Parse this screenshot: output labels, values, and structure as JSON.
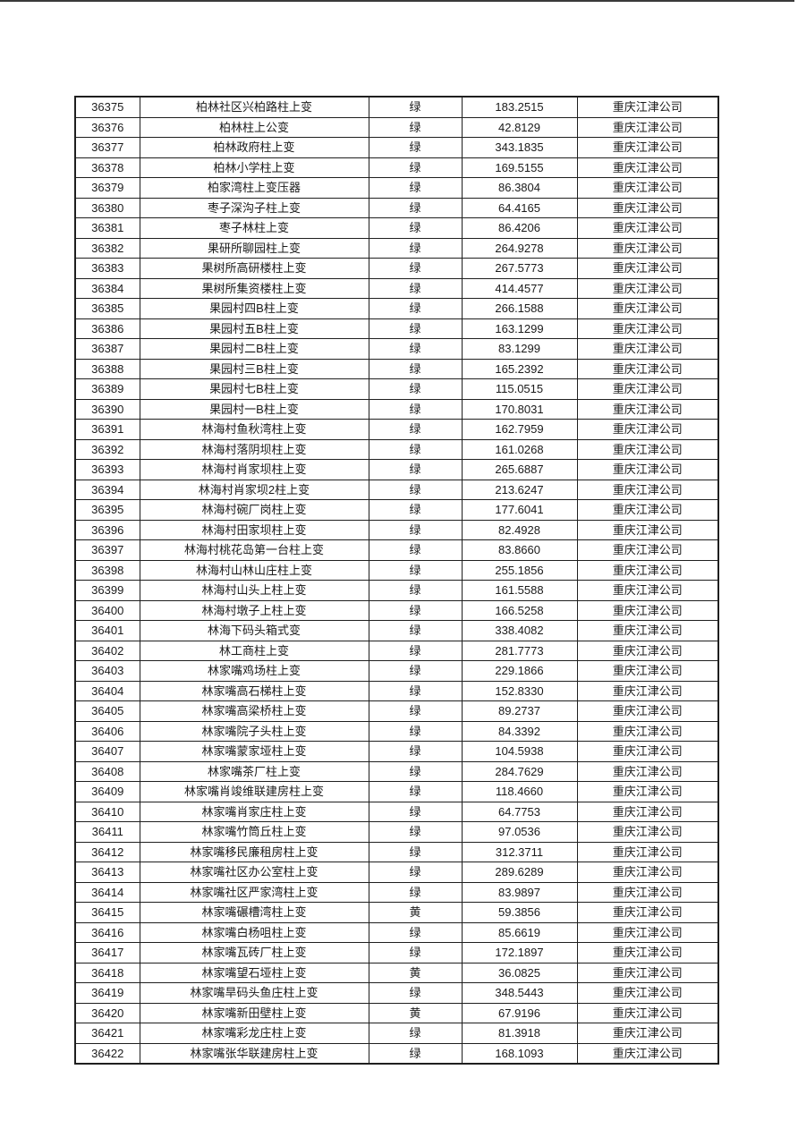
{
  "page": {
    "background_color": "#ffffff",
    "top_rule_color": "#3a3a3a"
  },
  "table": {
    "field_names": [
      "id",
      "name",
      "status",
      "value",
      "company"
    ],
    "rows": [
      [
        "36375",
        "柏林社区兴柏路柱上变",
        "绿",
        "183.2515",
        "重庆江津公司"
      ],
      [
        "36376",
        "柏林柱上公变",
        "绿",
        "42.8129",
        "重庆江津公司"
      ],
      [
        "36377",
        "柏林政府柱上变",
        "绿",
        "343.1835",
        "重庆江津公司"
      ],
      [
        "36378",
        "柏林小学柱上变",
        "绿",
        "169.5155",
        "重庆江津公司"
      ],
      [
        "36379",
        "柏家湾柱上变压器",
        "绿",
        "86.3804",
        "重庆江津公司"
      ],
      [
        "36380",
        "枣子深沟子柱上变",
        "绿",
        "64.4165",
        "重庆江津公司"
      ],
      [
        "36381",
        "枣子林柱上变",
        "绿",
        "86.4206",
        "重庆江津公司"
      ],
      [
        "36382",
        "果研所聊园柱上变",
        "绿",
        "264.9278",
        "重庆江津公司"
      ],
      [
        "36383",
        "果树所高研楼柱上变",
        "绿",
        "267.5773",
        "重庆江津公司"
      ],
      [
        "36384",
        "果树所集资楼柱上变",
        "绿",
        "414.4577",
        "重庆江津公司"
      ],
      [
        "36385",
        "果园村四B柱上变",
        "绿",
        "266.1588",
        "重庆江津公司"
      ],
      [
        "36386",
        "果园村五B柱上变",
        "绿",
        "163.1299",
        "重庆江津公司"
      ],
      [
        "36387",
        "果园村二B柱上变",
        "绿",
        "83.1299",
        "重庆江津公司"
      ],
      [
        "36388",
        "果园村三B柱上变",
        "绿",
        "165.2392",
        "重庆江津公司"
      ],
      [
        "36389",
        "果园村七B柱上变",
        "绿",
        "115.0515",
        "重庆江津公司"
      ],
      [
        "36390",
        "果园村一B柱上变",
        "绿",
        "170.8031",
        "重庆江津公司"
      ],
      [
        "36391",
        "林海村鱼秋湾柱上变",
        "绿",
        "162.7959",
        "重庆江津公司"
      ],
      [
        "36392",
        "林海村落阴坝柱上变",
        "绿",
        "161.0268",
        "重庆江津公司"
      ],
      [
        "36393",
        "林海村肖家坝柱上变",
        "绿",
        "265.6887",
        "重庆江津公司"
      ],
      [
        "36394",
        "林海村肖家坝2柱上变",
        "绿",
        "213.6247",
        "重庆江津公司"
      ],
      [
        "36395",
        "林海村碗厂岗柱上变",
        "绿",
        "177.6041",
        "重庆江津公司"
      ],
      [
        "36396",
        "林海村田家坝柱上变",
        "绿",
        "82.4928",
        "重庆江津公司"
      ],
      [
        "36397",
        "林海村桃花岛第一台柱上变",
        "绿",
        "83.8660",
        "重庆江津公司"
      ],
      [
        "36398",
        "林海村山林山庄柱上变",
        "绿",
        "255.1856",
        "重庆江津公司"
      ],
      [
        "36399",
        "林海村山头上柱上变",
        "绿",
        "161.5588",
        "重庆江津公司"
      ],
      [
        "36400",
        "林海村墩子上柱上变",
        "绿",
        "166.5258",
        "重庆江津公司"
      ],
      [
        "36401",
        "林海下码头箱式变",
        "绿",
        "338.4082",
        "重庆江津公司"
      ],
      [
        "36402",
        "林工商柱上变",
        "绿",
        "281.7773",
        "重庆江津公司"
      ],
      [
        "36403",
        "林家嘴鸡场柱上变",
        "绿",
        "229.1866",
        "重庆江津公司"
      ],
      [
        "36404",
        "林家嘴高石梯柱上变",
        "绿",
        "152.8330",
        "重庆江津公司"
      ],
      [
        "36405",
        "林家嘴高梁桥柱上变",
        "绿",
        "89.2737",
        "重庆江津公司"
      ],
      [
        "36406",
        "林家嘴院子头柱上变",
        "绿",
        "84.3392",
        "重庆江津公司"
      ],
      [
        "36407",
        "林家嘴蒙家垭柱上变",
        "绿",
        "104.5938",
        "重庆江津公司"
      ],
      [
        "36408",
        "林家嘴茶厂柱上变",
        "绿",
        "284.7629",
        "重庆江津公司"
      ],
      [
        "36409",
        "林家嘴肖竣维联建房柱上变",
        "绿",
        "118.4660",
        "重庆江津公司"
      ],
      [
        "36410",
        "林家嘴肖家庄柱上变",
        "绿",
        "64.7753",
        "重庆江津公司"
      ],
      [
        "36411",
        "林家嘴竹筒丘柱上变",
        "绿",
        "97.0536",
        "重庆江津公司"
      ],
      [
        "36412",
        "林家嘴移民廉租房柱上变",
        "绿",
        "312.3711",
        "重庆江津公司"
      ],
      [
        "36413",
        "林家嘴社区办公室柱上变",
        "绿",
        "289.6289",
        "重庆江津公司"
      ],
      [
        "36414",
        "林家嘴社区严家湾柱上变",
        "绿",
        "83.9897",
        "重庆江津公司"
      ],
      [
        "36415",
        "林家嘴碾槽湾柱上变",
        "黄",
        "59.3856",
        "重庆江津公司"
      ],
      [
        "36416",
        "林家嘴白杨咀柱上变",
        "绿",
        "85.6619",
        "重庆江津公司"
      ],
      [
        "36417",
        "林家嘴瓦砖厂柱上变",
        "绿",
        "172.1897",
        "重庆江津公司"
      ],
      [
        "36418",
        "林家嘴望石垭柱上变",
        "黄",
        "36.0825",
        "重庆江津公司"
      ],
      [
        "36419",
        "林家嘴旱码头鱼庄柱上变",
        "绿",
        "348.5443",
        "重庆江津公司"
      ],
      [
        "36420",
        "林家嘴新田壁柱上变",
        "黄",
        "67.9196",
        "重庆江津公司"
      ],
      [
        "36421",
        "林家嘴彩龙庄柱上变",
        "绿",
        "81.3918",
        "重庆江津公司"
      ],
      [
        "36422",
        "林家嘴张华联建房柱上变",
        "绿",
        "168.1093",
        "重庆江津公司"
      ]
    ]
  }
}
